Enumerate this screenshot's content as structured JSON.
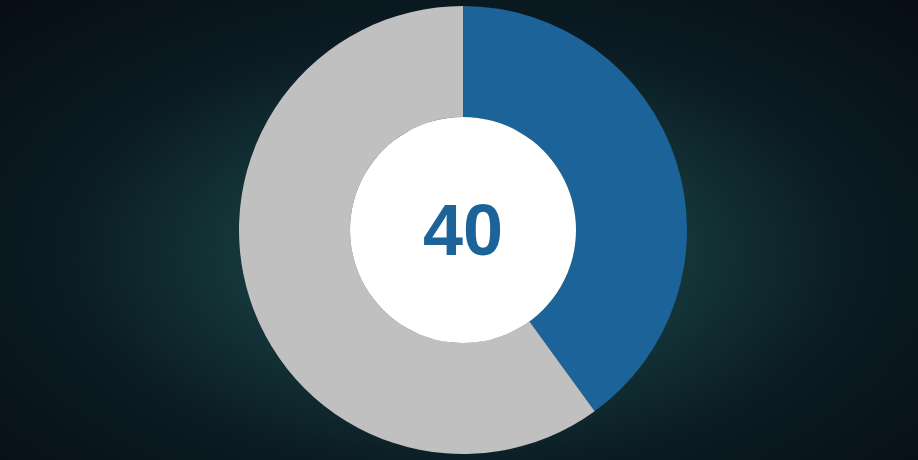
{
  "chart_data": {
    "type": "donut",
    "values": [
      40,
      60
    ],
    "colors": [
      "#1b6399",
      "#c0c0c0"
    ],
    "center_text": "40"
  }
}
